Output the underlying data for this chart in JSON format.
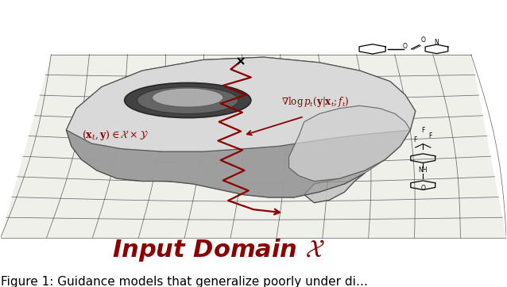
{
  "title_text": "Input Domain $\\mathcal{X}$",
  "title_color": "#8B0000",
  "caption_text": "Figure 1: Guidance models that generalize poorly under di…",
  "caption_fontsize": 11,
  "title_fontsize": 22,
  "bg_color": "#ffffff",
  "grid_color": "#222222",
  "arrow_color": "#8B0000",
  "label_color": "#8B0000",
  "label1": "$(\\mathbf{x}_t, \\mathbf{y}) \\in \\mathcal{X} \\times \\mathcal{Y}$",
  "label2": "$\\nabla \\log p_t(\\mathbf{y}|\\mathbf{x}_t; f_t)$",
  "fig_width": 6.38,
  "fig_height": 3.62,
  "dpi": 100
}
